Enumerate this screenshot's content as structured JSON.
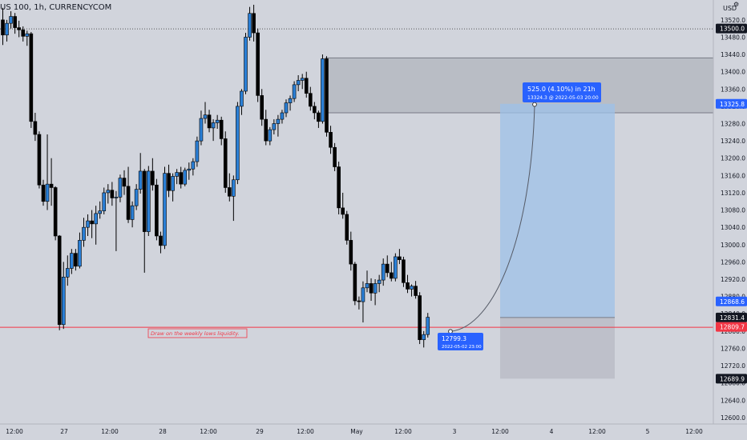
{
  "header": {
    "symbol_label": "US 100, 1h, CURRENCYCOM",
    "currency": "USD"
  },
  "chart_data": {
    "type": "candlestick",
    "symbol": "US 100",
    "interval": "1h",
    "exchange": "CURRENCYCOM",
    "currency": "USD",
    "ylim": [
      12585,
      13566
    ],
    "y_ticks": [
      13520.0,
      13480.0,
      13440.0,
      13400.0,
      13360.0,
      13320.0,
      13280.0,
      13240.0,
      13200.0,
      13160.0,
      13120.0,
      13080.0,
      13040.0,
      13000.0,
      12960.0,
      12920.0,
      12880.0,
      12840.0,
      12800.0,
      12760.0,
      12720.0,
      12680.0,
      12640.0,
      12600.0
    ],
    "x_ticks": [
      "12:00",
      "27",
      "12:00",
      "28",
      "12:00",
      "29",
      "12:00",
      "May",
      "12:00",
      "3",
      "12:00",
      "4",
      "12:00",
      "5",
      "12:00"
    ],
    "price_labels": [
      {
        "value": "13500.0",
        "kind": "level"
      },
      {
        "value": "13325.8",
        "kind": "target"
      },
      {
        "value": "12868.6",
        "kind": "entry"
      },
      {
        "value": "12831.4",
        "kind": "current"
      },
      {
        "value": "12809.7",
        "kind": "liquidity"
      },
      {
        "value": "12689.9",
        "kind": "stop"
      }
    ],
    "horizontal_lines": [
      {
        "price": 13500.0,
        "style": "dotted",
        "color": "#555555"
      },
      {
        "price": 12809.7,
        "style": "solid",
        "color": "#f23645"
      }
    ],
    "zones": [
      {
        "label": "supply",
        "top": 13432,
        "bottom": 13305
      },
      {
        "label": "target",
        "top": 13325.8,
        "bottom": 12831.4
      },
      {
        "label": "stop",
        "top": 12831.4,
        "bottom": 12689.9
      }
    ],
    "projection": {
      "start": {
        "price": 12799.3,
        "date": "2022-05-02 23:00"
      },
      "end": {
        "price": 13324.3,
        "date": "2022-05-03 20:00"
      },
      "start_label": "12799.3",
      "start_sublabel": "2022-05-02 23:00",
      "end_label": "525.0 (4.10%) in 21h",
      "end_sublabel": "13324.3 @ 2022-05-03  20:00"
    },
    "annotation": "Draw on the weekly lows liquidity.",
    "candles": [
      {
        "o": 13520,
        "h": 13548,
        "l": 13462,
        "c": 13485
      },
      {
        "o": 13485,
        "h": 13520,
        "l": 13470,
        "c": 13512
      },
      {
        "o": 13512,
        "h": 13540,
        "l": 13500,
        "c": 13528
      },
      {
        "o": 13528,
        "h": 13536,
        "l": 13488,
        "c": 13502
      },
      {
        "o": 13502,
        "h": 13518,
        "l": 13480,
        "c": 13497
      },
      {
        "o": 13497,
        "h": 13505,
        "l": 13470,
        "c": 13482
      },
      {
        "o": 13482,
        "h": 13495,
        "l": 13460,
        "c": 13488
      },
      {
        "o": 13488,
        "h": 13492,
        "l": 13270,
        "c": 13285
      },
      {
        "o": 13285,
        "h": 13305,
        "l": 13240,
        "c": 13255
      },
      {
        "o": 13255,
        "h": 13262,
        "l": 13130,
        "c": 13138
      },
      {
        "o": 13138,
        "h": 13150,
        "l": 13090,
        "c": 13100
      },
      {
        "o": 13100,
        "h": 13255,
        "l": 13080,
        "c": 13140
      },
      {
        "o": 13140,
        "h": 13200,
        "l": 13090,
        "c": 13132
      },
      {
        "o": 13132,
        "h": 13135,
        "l": 13010,
        "c": 13020
      },
      {
        "o": 13020,
        "h": 13022,
        "l": 12802,
        "c": 12815
      },
      {
        "o": 12815,
        "h": 12960,
        "l": 12805,
        "c": 12925
      },
      {
        "o": 12925,
        "h": 12975,
        "l": 12905,
        "c": 12945
      },
      {
        "o": 12945,
        "h": 12990,
        "l": 12932,
        "c": 12980
      },
      {
        "o": 12980,
        "h": 12990,
        "l": 12940,
        "c": 12950
      },
      {
        "o": 12950,
        "h": 13028,
        "l": 12945,
        "c": 13010
      },
      {
        "o": 13010,
        "h": 13062,
        "l": 12995,
        "c": 13040
      },
      {
        "o": 13040,
        "h": 13070,
        "l": 13020,
        "c": 13055
      },
      {
        "o": 13055,
        "h": 13080,
        "l": 13015,
        "c": 13048
      },
      {
        "o": 13048,
        "h": 13090,
        "l": 13000,
        "c": 13072
      },
      {
        "o": 13072,
        "h": 13100,
        "l": 13060,
        "c": 13078
      },
      {
        "o": 13078,
        "h": 13132,
        "l": 13070,
        "c": 13120
      },
      {
        "o": 13120,
        "h": 13140,
        "l": 13095,
        "c": 13126
      },
      {
        "o": 13126,
        "h": 13145,
        "l": 13090,
        "c": 13108
      },
      {
        "o": 13108,
        "h": 13124,
        "l": 12985,
        "c": 13110
      },
      {
        "o": 13110,
        "h": 13162,
        "l": 13098,
        "c": 13154
      },
      {
        "o": 13154,
        "h": 13172,
        "l": 13115,
        "c": 13135
      },
      {
        "o": 13135,
        "h": 13180,
        "l": 13050,
        "c": 13058
      },
      {
        "o": 13058,
        "h": 13100,
        "l": 13040,
        "c": 13090
      },
      {
        "o": 13090,
        "h": 13140,
        "l": 13080,
        "c": 13128
      },
      {
        "o": 13128,
        "h": 13212,
        "l": 13118,
        "c": 13170
      },
      {
        "o": 13170,
        "h": 13175,
        "l": 12935,
        "c": 13030
      },
      {
        "o": 13030,
        "h": 13182,
        "l": 13020,
        "c": 13170
      },
      {
        "o": 13170,
        "h": 13200,
        "l": 13125,
        "c": 13138
      },
      {
        "o": 13138,
        "h": 13152,
        "l": 13010,
        "c": 13020
      },
      {
        "o": 13020,
        "h": 13030,
        "l": 12980,
        "c": 12998
      },
      {
        "o": 12998,
        "h": 13180,
        "l": 12990,
        "c": 13165
      },
      {
        "o": 13165,
        "h": 13185,
        "l": 13110,
        "c": 13125
      },
      {
        "o": 13125,
        "h": 13165,
        "l": 13100,
        "c": 13158
      },
      {
        "o": 13158,
        "h": 13175,
        "l": 13140,
        "c": 13167
      },
      {
        "o": 13167,
        "h": 13180,
        "l": 13130,
        "c": 13140
      },
      {
        "o": 13140,
        "h": 13178,
        "l": 13135,
        "c": 13172
      },
      {
        "o": 13172,
        "h": 13190,
        "l": 13150,
        "c": 13175
      },
      {
        "o": 13175,
        "h": 13200,
        "l": 13160,
        "c": 13192
      },
      {
        "o": 13192,
        "h": 13250,
        "l": 13180,
        "c": 13240
      },
      {
        "o": 13240,
        "h": 13310,
        "l": 13230,
        "c": 13292
      },
      {
        "o": 13292,
        "h": 13330,
        "l": 13280,
        "c": 13300
      },
      {
        "o": 13300,
        "h": 13312,
        "l": 13260,
        "c": 13270
      },
      {
        "o": 13270,
        "h": 13290,
        "l": 13240,
        "c": 13282
      },
      {
        "o": 13282,
        "h": 13300,
        "l": 13268,
        "c": 13288
      },
      {
        "o": 13288,
        "h": 13296,
        "l": 13230,
        "c": 13245
      },
      {
        "o": 13245,
        "h": 13262,
        "l": 13120,
        "c": 13132
      },
      {
        "o": 13132,
        "h": 13165,
        "l": 13100,
        "c": 13112
      },
      {
        "o": 13112,
        "h": 13160,
        "l": 13055,
        "c": 13150
      },
      {
        "o": 13150,
        "h": 13330,
        "l": 13140,
        "c": 13320
      },
      {
        "o": 13320,
        "h": 13360,
        "l": 13300,
        "c": 13355
      },
      {
        "o": 13355,
        "h": 13490,
        "l": 13348,
        "c": 13480
      },
      {
        "o": 13480,
        "h": 13550,
        "l": 13472,
        "c": 13535
      },
      {
        "o": 13535,
        "h": 13555,
        "l": 13470,
        "c": 13490
      },
      {
        "o": 13490,
        "h": 13500,
        "l": 13330,
        "c": 13345
      },
      {
        "o": 13345,
        "h": 13360,
        "l": 13275,
        "c": 13290
      },
      {
        "o": 13290,
        "h": 13312,
        "l": 13230,
        "c": 13240
      },
      {
        "o": 13240,
        "h": 13272,
        "l": 13230,
        "c": 13266
      },
      {
        "o": 13266,
        "h": 13290,
        "l": 13255,
        "c": 13280
      },
      {
        "o": 13280,
        "h": 13300,
        "l": 13250,
        "c": 13290
      },
      {
        "o": 13290,
        "h": 13312,
        "l": 13280,
        "c": 13305
      },
      {
        "o": 13305,
        "h": 13336,
        "l": 13295,
        "c": 13328
      },
      {
        "o": 13328,
        "h": 13345,
        "l": 13310,
        "c": 13338
      },
      {
        "o": 13338,
        "h": 13378,
        "l": 13330,
        "c": 13370
      },
      {
        "o": 13370,
        "h": 13392,
        "l": 13355,
        "c": 13380
      },
      {
        "o": 13380,
        "h": 13395,
        "l": 13360,
        "c": 13385
      },
      {
        "o": 13385,
        "h": 13400,
        "l": 13340,
        "c": 13350
      },
      {
        "o": 13350,
        "h": 13365,
        "l": 13310,
        "c": 13320
      },
      {
        "o": 13320,
        "h": 13330,
        "l": 13290,
        "c": 13305
      },
      {
        "o": 13305,
        "h": 13310,
        "l": 13270,
        "c": 13285
      },
      {
        "o": 13285,
        "h": 13440,
        "l": 13280,
        "c": 13430
      },
      {
        "o": 13430,
        "h": 13436,
        "l": 13250,
        "c": 13260
      },
      {
        "o": 13260,
        "h": 13275,
        "l": 13210,
        "c": 13225
      },
      {
        "o": 13225,
        "h": 13235,
        "l": 13170,
        "c": 13180
      },
      {
        "o": 13180,
        "h": 13192,
        "l": 13070,
        "c": 13085
      },
      {
        "o": 13085,
        "h": 13120,
        "l": 13060,
        "c": 13070
      },
      {
        "o": 13070,
        "h": 13078,
        "l": 13000,
        "c": 13010
      },
      {
        "o": 13010,
        "h": 13030,
        "l": 12940,
        "c": 12955
      },
      {
        "o": 12955,
        "h": 12960,
        "l": 12860,
        "c": 12870
      },
      {
        "o": 12870,
        "h": 12880,
        "l": 12850,
        "c": 12868
      },
      {
        "o": 12868,
        "h": 12915,
        "l": 12820,
        "c": 12900
      },
      {
        "o": 12900,
        "h": 12940,
        "l": 12890,
        "c": 12910
      },
      {
        "o": 12910,
        "h": 12922,
        "l": 12870,
        "c": 12888
      },
      {
        "o": 12888,
        "h": 12920,
        "l": 12860,
        "c": 12910
      },
      {
        "o": 12910,
        "h": 12930,
        "l": 12890,
        "c": 12918
      },
      {
        "o": 12918,
        "h": 12968,
        "l": 12905,
        "c": 12955
      },
      {
        "o": 12955,
        "h": 12975,
        "l": 12925,
        "c": 12935
      },
      {
        "o": 12935,
        "h": 12960,
        "l": 12915,
        "c": 12922
      },
      {
        "o": 12922,
        "h": 12980,
        "l": 12915,
        "c": 12972
      },
      {
        "o": 12972,
        "h": 12990,
        "l": 12955,
        "c": 12965
      },
      {
        "o": 12965,
        "h": 12972,
        "l": 12902,
        "c": 12912
      },
      {
        "o": 12912,
        "h": 12930,
        "l": 12888,
        "c": 12897
      },
      {
        "o": 12897,
        "h": 12908,
        "l": 12880,
        "c": 12904
      },
      {
        "o": 12904,
        "h": 12916,
        "l": 12875,
        "c": 12882
      },
      {
        "o": 12882,
        "h": 12890,
        "l": 12770,
        "c": 12780
      },
      {
        "o": 12780,
        "h": 12800,
        "l": 12762,
        "c": 12792
      },
      {
        "o": 12792,
        "h": 12842,
        "l": 12785,
        "c": 12832
      }
    ]
  }
}
